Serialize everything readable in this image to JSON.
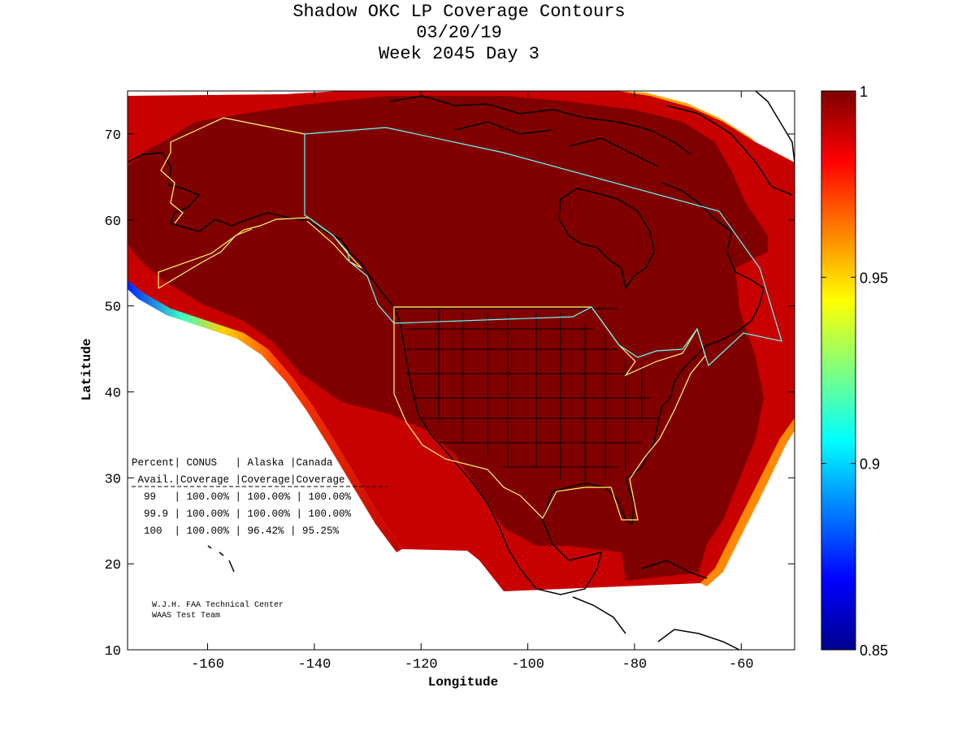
{
  "title": {
    "line1": "Shadow OKC LP Coverage Contours",
    "line2": "03/20/19",
    "line3": "Week 2045 Day 3"
  },
  "axes": {
    "xlabel": "Longitude",
    "ylabel": "Latitude",
    "xlim": [
      -175,
      -50
    ],
    "ylim": [
      10,
      75
    ],
    "xticks": [
      -160,
      -140,
      -120,
      -100,
      -80,
      -60
    ],
    "yticks": [
      10,
      20,
      30,
      40,
      50,
      60,
      70
    ]
  },
  "colorbar": {
    "range": [
      0.85,
      1.0
    ],
    "ticks": [
      "0.85",
      "0.9",
      "0.95",
      "1"
    ],
    "tick_values": [
      0.85,
      0.9,
      0.95,
      1.0
    ]
  },
  "coverage_table": {
    "header1": "Percent| CONUS   | Alaska |Canada",
    "header2": " Avail.|Coverage |Coverage|Coverage",
    "rows": [
      "  99   | 100.00% | 100.00% | 100.00%",
      "  99.9 | 100.00% | 100.00% | 100.00%",
      "  100  | 100.00% | 96.42% | 95.25%"
    ]
  },
  "credit": {
    "line1": "W.J.H. FAA Technical Center",
    "line2": "WAAS Test Team"
  },
  "colors": {
    "coverage_full": "#800000",
    "coverage_high": "#c00000",
    "boundary_conus_alaska": "#ffff66",
    "boundary_canada": "#66ffff",
    "coastline": "#000000"
  }
}
